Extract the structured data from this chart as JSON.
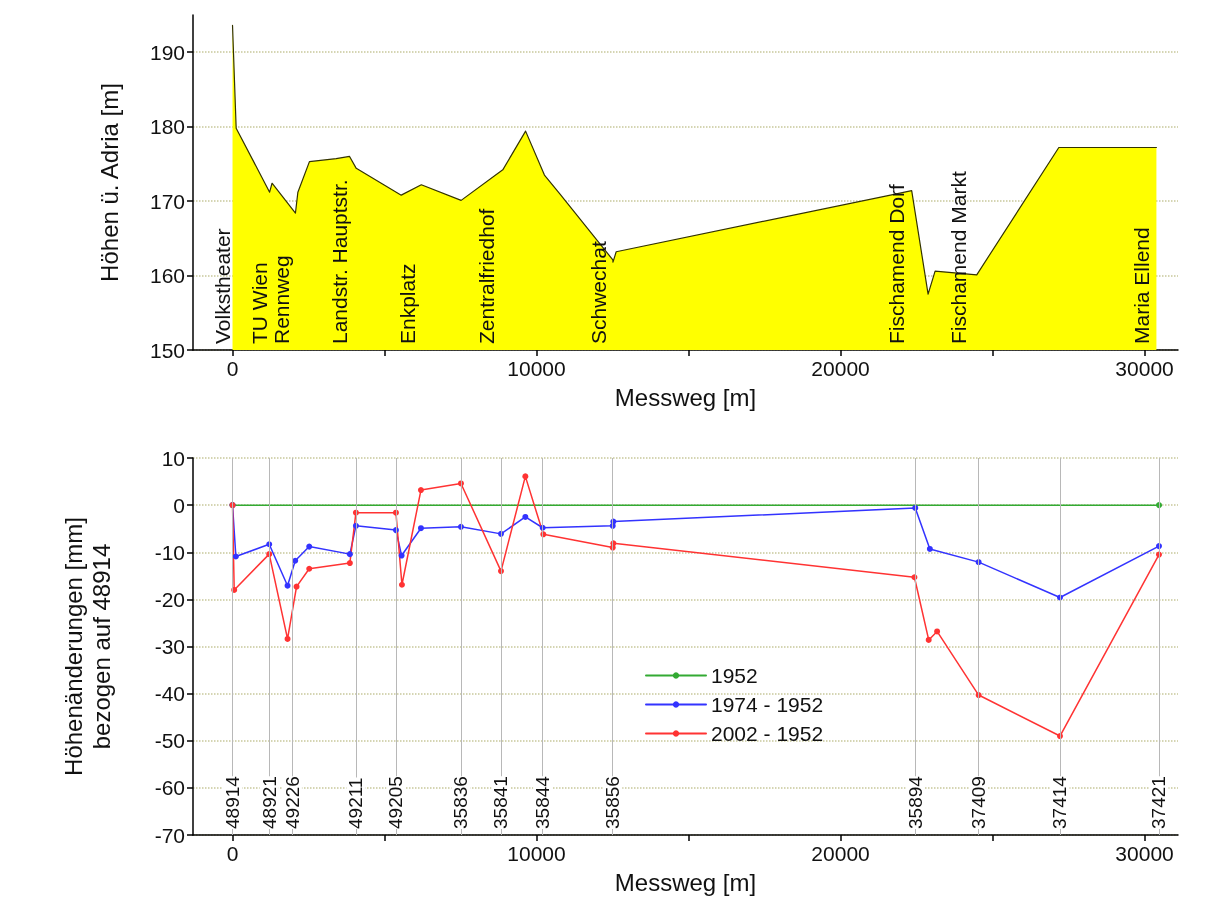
{
  "chart_data": [
    {
      "type": "area",
      "xlabel": "Messweg [m]",
      "ylabel": "Höhen ü. Adria [m]",
      "xlim": [
        -1300,
        31100
      ],
      "xticks": [
        0,
        {
          "value": 5000,
          "label": null
        },
        10000,
        {
          "value": 15000,
          "label": null
        },
        20000,
        {
          "value": 25000,
          "label": null
        },
        30000
      ],
      "ylim": [
        150,
        195
      ],
      "yticks": [
        150,
        160,
        170,
        180,
        190
      ],
      "grid": "y",
      "marker": "none",
      "line_style": "solid",
      "series": [
        {
          "color": "#ffff00",
          "x": [
            0,
            120,
            1220,
            1300,
            2070,
            2150,
            2530,
            3410,
            3850,
            4070,
            5550,
            6210,
            7520,
            8890,
            9640,
            10260,
            10760,
            12510,
            12515,
            12620,
            21640,
            22340,
            22880,
            23110,
            24480,
            27180,
            30390
          ],
          "values": [
            193.6,
            179.8,
            171.2,
            172.4,
            168.4,
            171.2,
            175.3,
            175.7,
            176,
            174.4,
            170.8,
            172.2,
            170.1,
            174.2,
            179.4,
            173.5,
            171,
            162.1,
            161.8,
            163.2,
            170.8,
            171.4,
            157.5,
            160.6,
            160.1,
            177.2,
            177.2
          ]
        }
      ],
      "annotations": [
        {
          "text": "Volkstheater",
          "x": 0,
          "y": 150
        },
        {
          "text": "TU Wien",
          "x": 1220,
          "y": 150
        },
        {
          "text": "Rennweg",
          "x": 1970,
          "y": 150
        },
        {
          "text": "Landstr. Hauptstr.",
          "x": 3880,
          "y": 150
        },
        {
          "text": "Enkplatz",
          "x": 6090,
          "y": 150
        },
        {
          "text": "Zentralfriedhof",
          "x": 8690,
          "y": 150
        },
        {
          "text": "Schwechat",
          "x": 12370,
          "y": 150
        },
        {
          "text": "Fischamend Dorf",
          "x": 22170,
          "y": 150
        },
        {
          "text": "Fischamend Markt",
          "x": 24240,
          "y": 150
        },
        {
          "text": "Maria Ellend",
          "x": 30230,
          "y": 150
        }
      ]
    },
    {
      "type": "line",
      "xlabel": "Messweg [m]",
      "ylabel": "Höhenänderungen [mm]\nbezogen auf 48914",
      "xlim": [
        -1300,
        31100
      ],
      "xticks": [
        0,
        {
          "value": 5000,
          "label": null
        },
        10000,
        {
          "value": 15000,
          "label": null
        },
        20000,
        {
          "value": 25000,
          "label": null
        },
        30000
      ],
      "ylim": [
        -70,
        10
      ],
      "yticks": [
        -70,
        -60,
        -50,
        -40,
        -30,
        -20,
        -10,
        0,
        10
      ],
      "grid": "y",
      "legend": "center",
      "marker": "circle",
      "line_style": "solid",
      "series": [
        {
          "name": "1952",
          "color": "#33aa33",
          "x": [
            0,
            30475
          ],
          "values": [
            0,
            0
          ]
        },
        {
          "name": "1974 - 1952",
          "color": "#3333ff",
          "x": [
            0,
            110,
            1207,
            1810,
            2062,
            2523,
            3860,
            4059,
            5375,
            5562,
            6198,
            7514,
            8831,
            9632,
            10202,
            12506,
            12528,
            22457,
            22938,
            24542,
            27218,
            30475
          ],
          "values": [
            0,
            -10.9,
            -8.3,
            -17.1,
            -11.8,
            -8.8,
            -10.4,
            -4.4,
            -5.3,
            -10.7,
            -4.9,
            -4.6,
            -6.1,
            -2.5,
            -4.8,
            -4.4,
            -3.5,
            -0.6,
            -9.3,
            -12.1,
            -19.6,
            -8.7
          ]
        },
        {
          "name": "2002 - 1952",
          "color": "#ff3333",
          "x": [
            0,
            55,
            1207,
            1810,
            2106,
            2523,
            3860,
            4059,
            5375,
            5573,
            6198,
            7514,
            8831,
            9632,
            10224,
            12506,
            12528,
            22430,
            22900,
            23176,
            24542,
            27218,
            30475
          ],
          "values": [
            0,
            -18,
            -10.4,
            -28.4,
            -17.3,
            -13.5,
            -12.3,
            -1.6,
            -1.6,
            -16.9,
            3.2,
            4.6,
            -14,
            6.1,
            -6.2,
            -9,
            -8.1,
            -15.3,
            -28.6,
            -26.8,
            -40.3,
            -49,
            -10.5
          ]
        }
      ],
      "ref_lines": [
        {
          "axis": "x",
          "value": 0
        },
        {
          "axis": "x",
          "value": 1207
        },
        {
          "axis": "x",
          "value": 1970
        },
        {
          "axis": "x",
          "value": 4059
        },
        {
          "axis": "x",
          "value": 5375
        },
        {
          "axis": "x",
          "value": 7514
        },
        {
          "axis": "x",
          "value": 8831
        },
        {
          "axis": "x",
          "value": 10202
        },
        {
          "axis": "x",
          "value": 12506
        },
        {
          "axis": "x",
          "value": 22457
        },
        {
          "axis": "x",
          "value": 24542
        },
        {
          "axis": "x",
          "value": 27218
        },
        {
          "axis": "x",
          "value": 30475
        }
      ],
      "annotations": [
        {
          "text": "48914",
          "x": 0,
          "y": -70
        },
        {
          "text": "48921",
          "x": 1207,
          "y": -70
        },
        {
          "text": "49226",
          "x": 1970,
          "y": -70
        },
        {
          "text": "49211",
          "x": 4059,
          "y": -70
        },
        {
          "text": "49205",
          "x": 5375,
          "y": -70
        },
        {
          "text": "35836",
          "x": 7514,
          "y": -70
        },
        {
          "text": "35841",
          "x": 8831,
          "y": -70
        },
        {
          "text": "35844",
          "x": 10202,
          "y": -70
        },
        {
          "text": "35856",
          "x": 12506,
          "y": -70
        },
        {
          "text": "35894",
          "x": 22457,
          "y": -70
        },
        {
          "text": "37409",
          "x": 24542,
          "y": -70
        },
        {
          "text": "37414",
          "x": 27218,
          "y": -70
        },
        {
          "text": "37421",
          "x": 30475,
          "y": -70
        }
      ]
    }
  ]
}
